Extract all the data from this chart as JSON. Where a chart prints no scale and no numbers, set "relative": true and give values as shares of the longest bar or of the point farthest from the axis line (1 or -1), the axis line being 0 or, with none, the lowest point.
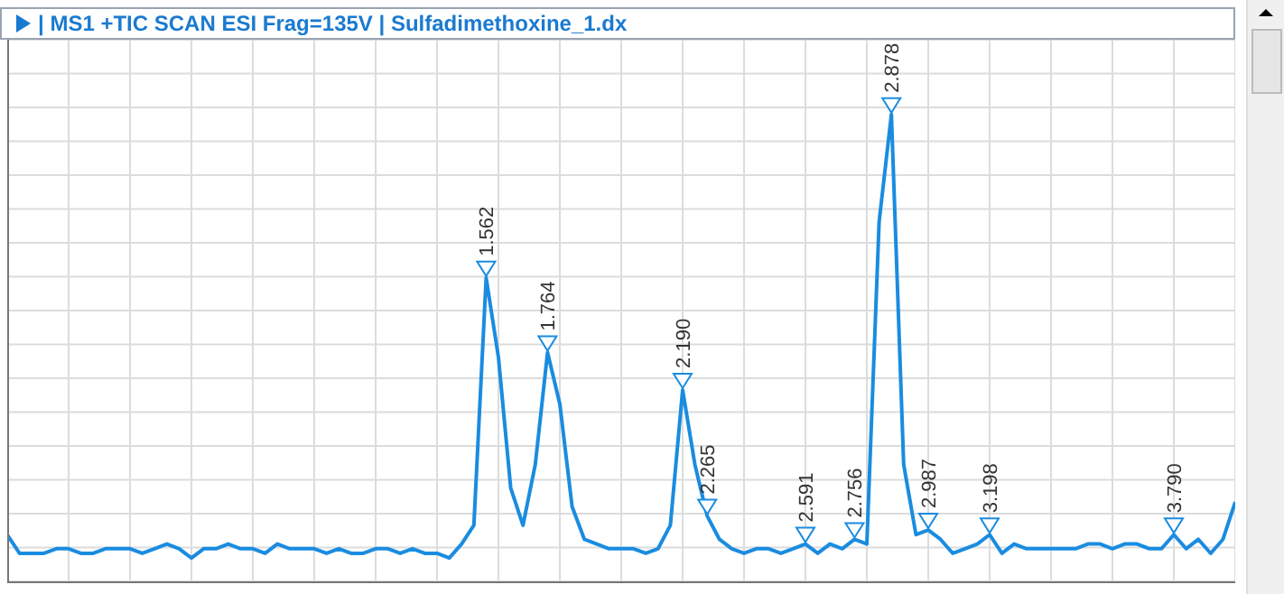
{
  "chart_data": {
    "type": "line",
    "title": "| MS1 +TIC SCAN ESI Frag=135V | Sulfadimethoxine_1.dx",
    "relative": true,
    "grid": true,
    "legend": false,
    "marker": "none",
    "line_style": "solid",
    "categories": [
      null,
      null,
      null,
      null,
      null,
      null,
      null,
      null,
      null,
      null,
      null,
      null,
      null,
      null,
      null,
      null,
      null,
      null,
      null,
      null,
      null,
      null,
      null,
      null,
      null,
      null,
      null,
      null,
      null,
      null,
      null,
      null,
      null,
      null,
      null,
      null,
      null,
      null,
      null,
      null,
      null,
      null,
      null,
      null,
      null,
      null,
      null,
      null,
      null,
      null,
      null,
      null,
      null,
      null,
      null,
      null,
      null,
      null,
      null,
      null,
      null,
      null,
      null,
      null,
      null,
      null,
      null,
      null,
      null,
      null,
      null,
      null,
      null,
      null,
      null,
      null,
      null,
      null,
      null,
      null,
      null,
      null,
      null,
      null,
      null,
      null,
      null,
      null,
      null,
      null,
      null,
      null,
      null,
      null,
      null,
      null,
      null,
      null,
      null,
      null,
      null
    ],
    "series": [
      {
        "color": "#1a8ce0",
        "values": [
          0.1,
          0.06,
          0.06,
          0.06,
          0.07,
          0.07,
          0.06,
          0.06,
          0.07,
          0.07,
          0.07,
          0.06,
          0.07,
          0.08,
          0.07,
          0.05,
          0.07,
          0.07,
          0.08,
          0.07,
          0.07,
          0.06,
          0.08,
          0.07,
          0.07,
          0.07,
          0.06,
          0.07,
          0.06,
          0.06,
          0.07,
          0.07,
          0.06,
          0.07,
          0.06,
          0.06,
          0.05,
          0.08,
          0.12,
          0.65,
          0.48,
          0.2,
          0.12,
          0.25,
          0.49,
          0.38,
          0.16,
          0.09,
          0.08,
          0.07,
          0.07,
          0.07,
          0.06,
          0.07,
          0.12,
          0.41,
          0.25,
          0.14,
          0.09,
          0.07,
          0.06,
          0.07,
          0.07,
          0.06,
          0.07,
          0.08,
          0.06,
          0.08,
          0.07,
          0.09,
          0.08,
          0.77,
          1,
          0.25,
          0.1,
          0.11,
          0.09,
          0.06,
          0.07,
          0.08,
          0.1,
          0.06,
          0.08,
          0.07,
          0.07,
          0.07,
          0.07,
          0.07,
          0.08,
          0.08,
          0.07,
          0.08,
          0.08,
          0.07,
          0.07,
          0.1,
          0.07,
          0.09,
          0.06,
          0.09,
          0.17
        ]
      }
    ],
    "annotations": [
      {
        "text": "1.562",
        "y": 0.65
      },
      {
        "text": "1.764",
        "y": 0.49
      },
      {
        "text": "2.190",
        "y": 0.41
      },
      {
        "text": "2.265",
        "y": 0.14
      },
      {
        "text": "2.591",
        "y": 0.08
      },
      {
        "text": "2.756",
        "y": 0.09
      },
      {
        "text": "2.878",
        "y": 1
      },
      {
        "text": "2.987",
        "y": 0.11
      },
      {
        "text": "3.198",
        "y": 0.1
      },
      {
        "text": "3.790",
        "y": 0.1
      }
    ]
  }
}
